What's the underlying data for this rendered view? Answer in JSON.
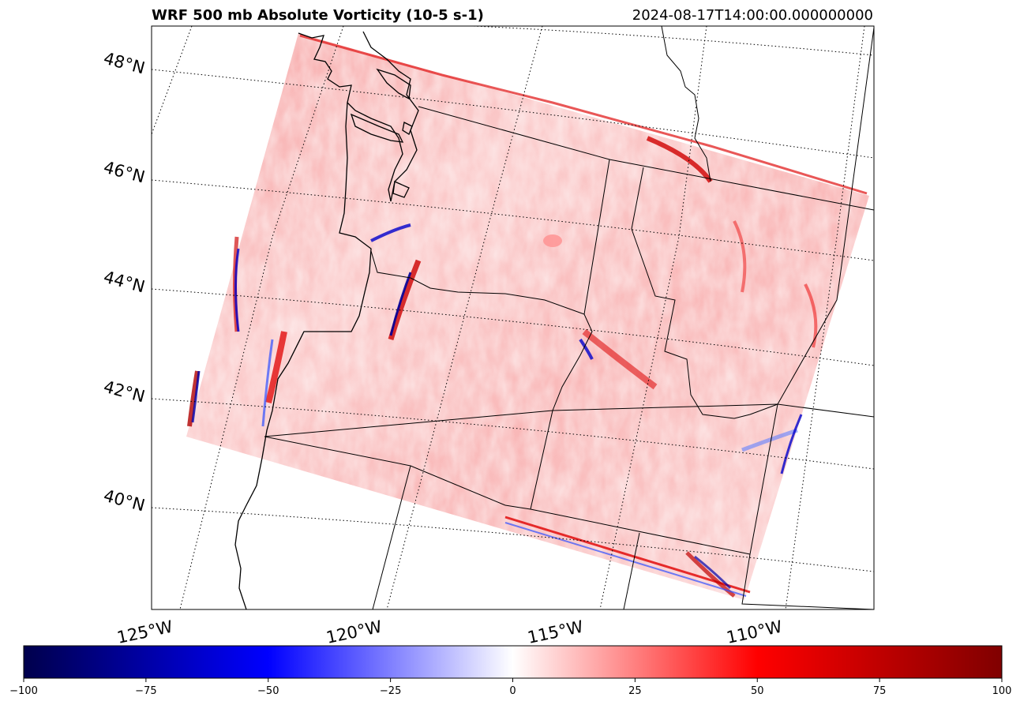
{
  "title": "WRF 500 mb Absolute Vorticity (10-5 s-1)",
  "valid_time": "2024-08-17T14:00:00.000000000",
  "map": {
    "projection": "lambert-conformal",
    "latitude_labels": [
      "48°N",
      "46°N",
      "44°N",
      "42°N",
      "40°N"
    ],
    "longitude_labels": [
      "125°W",
      "120°W",
      "115°W",
      "110°W"
    ],
    "gridlines": "dotted",
    "features": [
      "coastline",
      "state-borders",
      "country-border"
    ]
  },
  "field": {
    "name": "500 mb absolute vorticity",
    "units": "10-5 s-1",
    "dominant_sign": "positive",
    "colormap": "seismic"
  },
  "colorbar": {
    "min": -100,
    "max": 100,
    "ticks": [
      "−100",
      "−75",
      "−50",
      "−25",
      "0",
      "25",
      "50",
      "75",
      "100"
    ],
    "colors": [
      "#00004c",
      "#0000ff",
      "#ffffff",
      "#ff0000",
      "#800000"
    ]
  }
}
